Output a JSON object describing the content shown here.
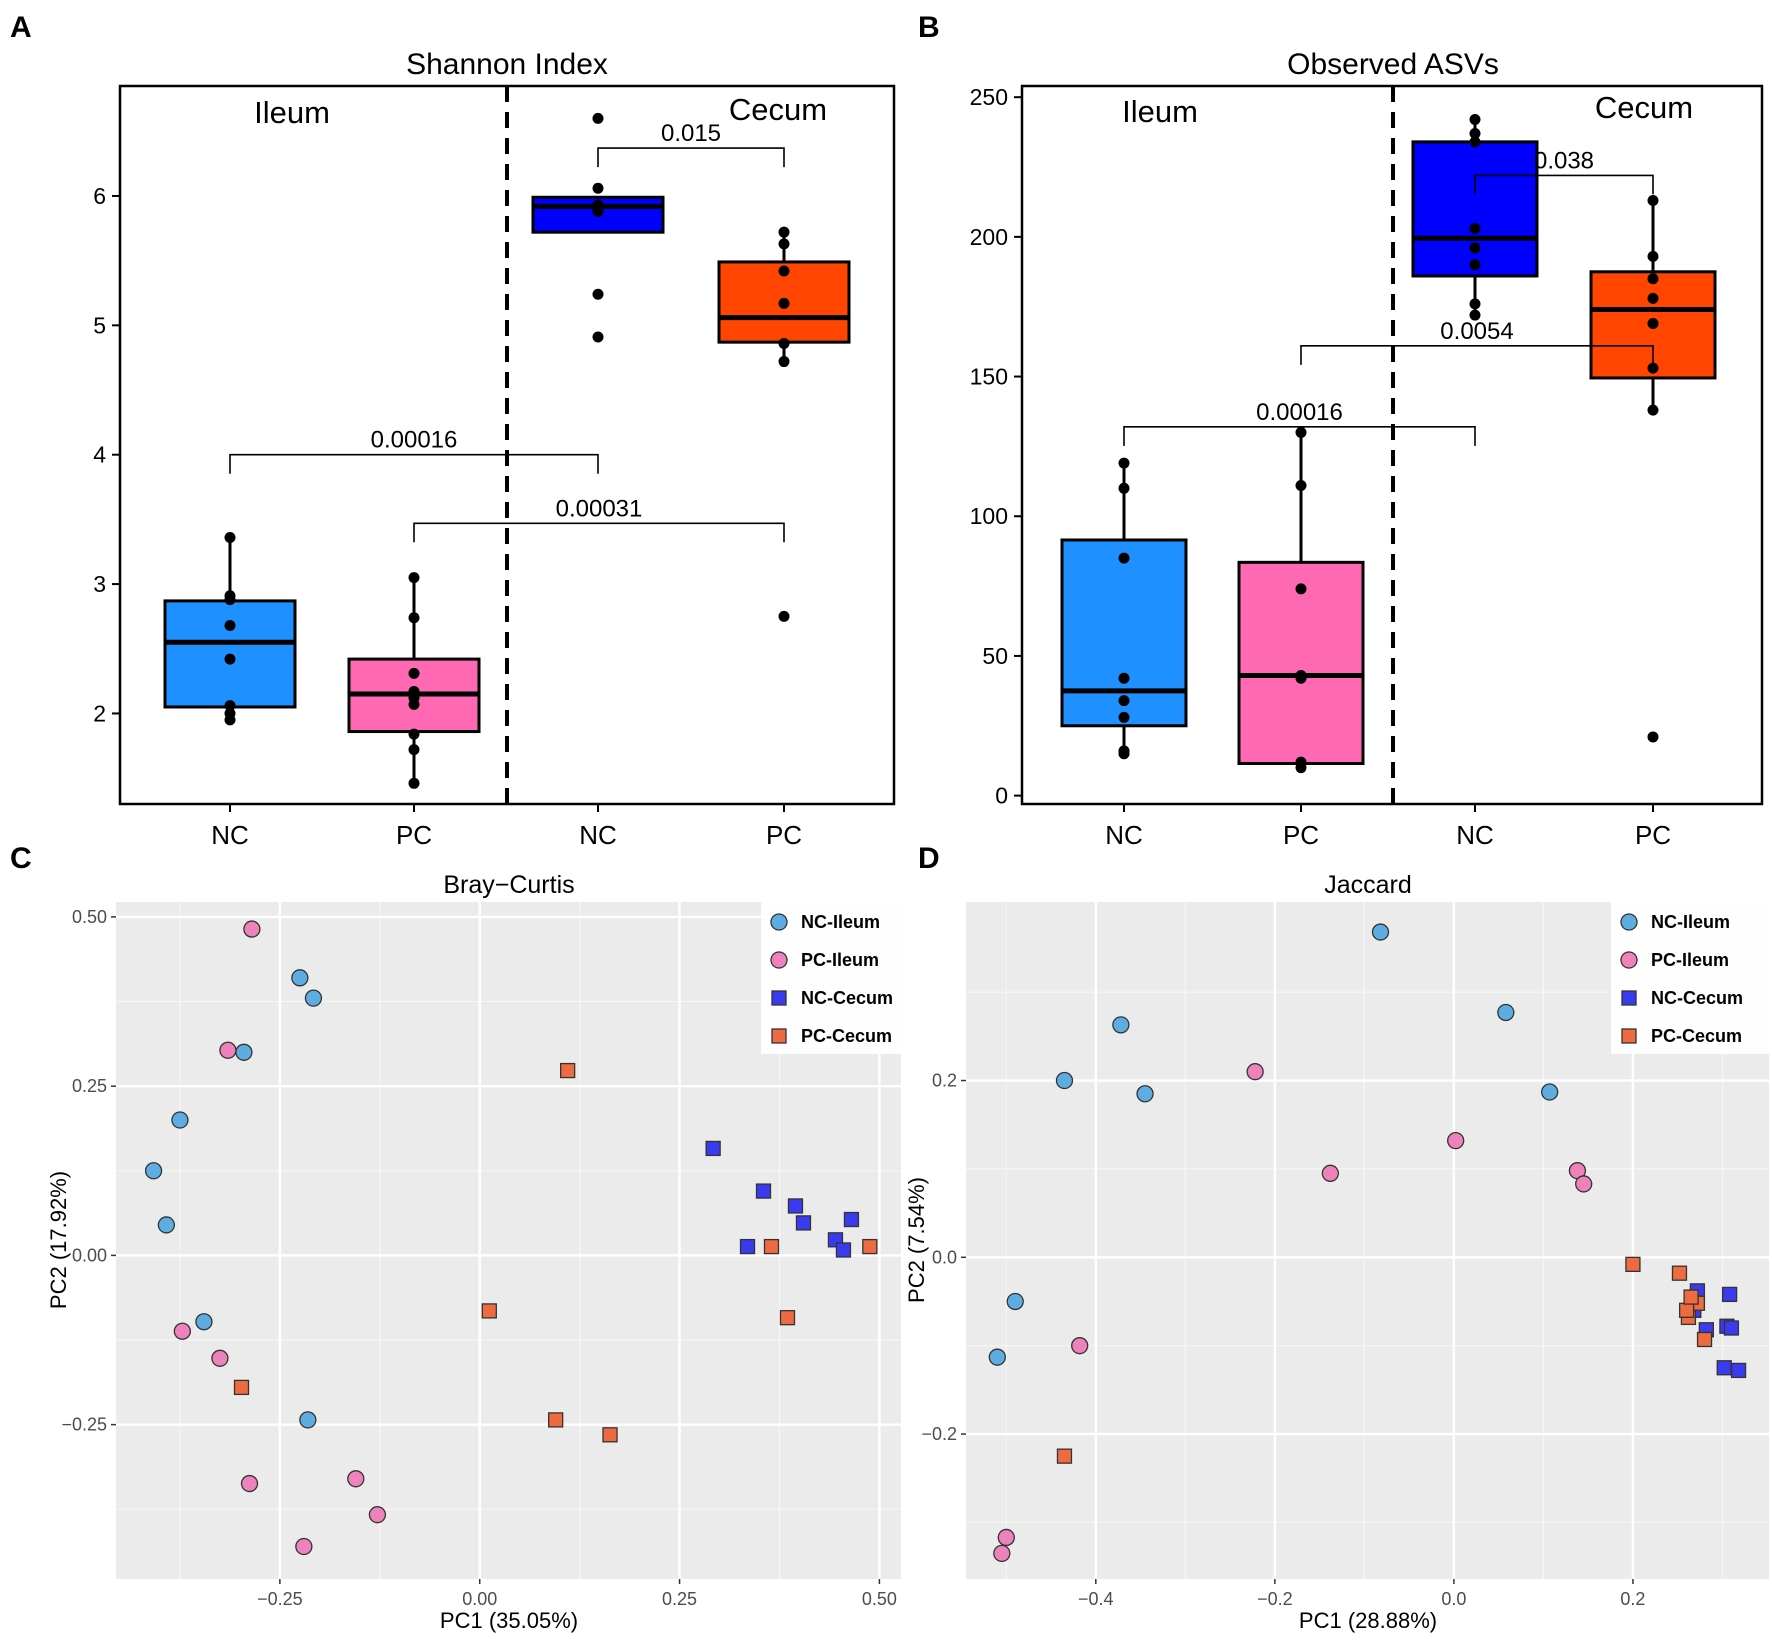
{
  "colors": {
    "nc_ileum": "#1e90ff",
    "pc_ileum": "#ff69b4",
    "nc_cecum": "#0000ff",
    "pc_cecum": "#ff4500",
    "pc_light_nc_ileum": "#5dade2",
    "pc_light_pc_ileum": "#ee82ba",
    "pc_light_nc_cecum": "#3a3aef",
    "pc_light_pc_cecum": "#ee6a40",
    "pcoa_panel_bg": "#ebebeb",
    "pcoa_grid": "#ffffff"
  },
  "chart_data": [
    {
      "panel": "A",
      "type": "box",
      "title": "Shannon Index",
      "region_labels": [
        "Ileum",
        "Cecum"
      ],
      "categories": [
        "NC",
        "PC",
        "NC",
        "PC"
      ],
      "groups": [
        "NC-Ileum",
        "PC-Ileum",
        "NC-Cecum",
        "PC-Cecum"
      ],
      "group_colors": [
        "nc_ileum",
        "pc_ileum",
        "nc_cecum",
        "pc_cecum"
      ],
      "ylim": [
        1.3,
        6.85
      ],
      "yticks": [
        2,
        3,
        4,
        5,
        6
      ],
      "boxes": [
        {
          "q1": 2.05,
          "median": 2.55,
          "q3": 2.87,
          "lo": 1.95,
          "hi": 3.36
        },
        {
          "q1": 1.86,
          "median": 2.15,
          "q3": 2.42,
          "lo": 1.46,
          "hi": 3.05
        },
        {
          "q1": 5.72,
          "median": 5.92,
          "q3": 5.99,
          "lo": 5.72,
          "hi": 5.99
        },
        {
          "q1": 4.87,
          "median": 5.06,
          "q3": 5.49,
          "lo": 4.72,
          "hi": 5.72
        }
      ],
      "points": [
        [
          1.95,
          2.0,
          2.06,
          2.42,
          2.68,
          2.88,
          2.91,
          3.36
        ],
        [
          1.46,
          1.72,
          1.84,
          2.07,
          2.12,
          2.17,
          2.31,
          2.74,
          3.05
        ],
        [
          4.91,
          5.24,
          5.88,
          5.9,
          5.93,
          6.06,
          6.6
        ],
        [
          2.75,
          4.72,
          4.86,
          5.17,
          5.42,
          5.63,
          5.72
        ]
      ],
      "comparisons": [
        {
          "from": 3,
          "to": 4,
          "y": 6.37,
          "label": "0.015"
        },
        {
          "from": 1,
          "to": 3,
          "y": 4.0,
          "label": "0.00016"
        },
        {
          "from": 2,
          "to": 4,
          "y": 3.47,
          "label": "0.00031"
        }
      ]
    },
    {
      "panel": "B",
      "type": "box",
      "title": "Observed ASVs",
      "region_labels": [
        "Ileum",
        "Cecum"
      ],
      "categories": [
        "NC",
        "PC",
        "NC",
        "PC"
      ],
      "groups": [
        "NC-Ileum",
        "PC-Ileum",
        "NC-Cecum",
        "PC-Cecum"
      ],
      "group_colors": [
        "nc_ileum",
        "pc_ileum",
        "nc_cecum",
        "pc_cecum"
      ],
      "ylim": [
        -3,
        254
      ],
      "yticks": [
        0,
        50,
        100,
        150,
        200,
        250
      ],
      "boxes": [
        {
          "q1": 25,
          "median": 37.5,
          "q3": 91.5,
          "lo": 15,
          "hi": 119
        },
        {
          "q1": 11.5,
          "median": 43,
          "q3": 83.5,
          "lo": 10,
          "hi": 130
        },
        {
          "q1": 186,
          "median": 199.5,
          "q3": 234,
          "lo": 172,
          "hi": 242
        },
        {
          "q1": 149.5,
          "median": 174,
          "q3": 187.5,
          "lo": 138,
          "hi": 213
        }
      ],
      "points": [
        [
          15,
          16,
          28,
          34,
          42,
          85,
          110,
          119
        ],
        [
          10,
          12,
          42,
          43,
          74,
          111,
          130
        ],
        [
          172,
          176,
          190,
          196,
          203,
          234,
          237,
          242
        ],
        [
          21,
          138,
          153,
          169,
          178,
          185,
          193,
          213
        ]
      ],
      "comparisons": [
        {
          "from": 3,
          "to": 4,
          "y": 222,
          "label": "0.038"
        },
        {
          "from": 2,
          "to": 4,
          "y": 161,
          "label": "0.0054"
        },
        {
          "from": 1,
          "to": 3,
          "y": 132,
          "label": "0.00016"
        }
      ]
    },
    {
      "panel": "C",
      "type": "scatter",
      "title": "Bray−Curtis",
      "xlabel": "PC1 (35.05%)",
      "ylabel": "PC2 (17.92%)",
      "xlim": [
        -0.455,
        0.527
      ],
      "ylim": [
        -0.478,
        0.522
      ],
      "xticks": [
        -0.25,
        0.0,
        0.25,
        0.5
      ],
      "xtick_labels": [
        "−0.25",
        "0.00",
        "0.25",
        "0.50"
      ],
      "yticks": [
        -0.25,
        0.0,
        0.25,
        0.5
      ],
      "ytick_labels": [
        "−0.25",
        "0.00",
        "0.25",
        "0.50"
      ],
      "legend": [
        "NC-Ileum",
        "PC-Ileum",
        "NC-Cecum",
        "PC-Cecum"
      ],
      "series": [
        {
          "name": "NC-Ileum",
          "shape": "circle",
          "color": "pc_light_nc_ileum",
          "points": [
            [
              -0.225,
              0.41
            ],
            [
              -0.208,
              0.38
            ],
            [
              -0.295,
              0.3
            ],
            [
              -0.375,
              0.2
            ],
            [
              -0.408,
              0.125
            ],
            [
              -0.392,
              0.045
            ],
            [
              -0.345,
              -0.098
            ],
            [
              -0.215,
              -0.243
            ]
          ]
        },
        {
          "name": "PC-Ileum",
          "shape": "circle",
          "color": "pc_light_pc_ileum",
          "points": [
            [
              -0.285,
              0.482
            ],
            [
              -0.315,
              0.303
            ],
            [
              -0.372,
              -0.112
            ],
            [
              -0.325,
              -0.152
            ],
            [
              -0.288,
              -0.337
            ],
            [
              -0.22,
              -0.43
            ],
            [
              -0.155,
              -0.33
            ],
            [
              -0.128,
              -0.383
            ]
          ]
        },
        {
          "name": "NC-Cecum",
          "shape": "square",
          "color": "pc_light_nc_cecum",
          "points": [
            [
              0.292,
              0.158
            ],
            [
              0.355,
              0.095
            ],
            [
              0.395,
              0.073
            ],
            [
              0.405,
              0.048
            ],
            [
              0.465,
              0.053
            ],
            [
              0.445,
              0.023
            ],
            [
              0.455,
              0.008
            ],
            [
              0.335,
              0.013
            ]
          ]
        },
        {
          "name": "PC-Cecum",
          "shape": "square",
          "color": "pc_light_pc_cecum",
          "points": [
            [
              0.11,
              0.273
            ],
            [
              0.365,
              0.013
            ],
            [
              0.385,
              -0.092
            ],
            [
              0.488,
              0.013
            ],
            [
              0.012,
              -0.082
            ],
            [
              0.095,
              -0.243
            ],
            [
              0.163,
              -0.265
            ],
            [
              -0.298,
              -0.195
            ]
          ]
        }
      ]
    },
    {
      "panel": "D",
      "type": "scatter",
      "title": "Jaccard",
      "xlabel": "PC1 (28.88%)",
      "ylabel": "PC2 (7.54%)",
      "xlim": [
        -0.545,
        0.352
      ],
      "ylim": [
        -0.364,
        0.402
      ],
      "xticks": [
        -0.4,
        -0.2,
        0.0,
        0.2
      ],
      "xtick_labels": [
        "−0.4",
        "−0.2",
        "0.0",
        "0.2"
      ],
      "yticks": [
        -0.2,
        0.0,
        0.2
      ],
      "ytick_labels": [
        "−0.2",
        "0.0",
        "0.2"
      ],
      "legend": [
        "NC-Ileum",
        "PC-Ileum",
        "NC-Cecum",
        "PC-Cecum"
      ],
      "series": [
        {
          "name": "NC-Ileum",
          "shape": "circle",
          "color": "pc_light_nc_ileum",
          "points": [
            [
              -0.082,
              0.368
            ],
            [
              0.058,
              0.277
            ],
            [
              0.107,
              0.187
            ],
            [
              -0.372,
              0.263
            ],
            [
              -0.435,
              0.2
            ],
            [
              -0.345,
              0.185
            ],
            [
              -0.49,
              -0.05
            ],
            [
              -0.51,
              -0.113
            ]
          ]
        },
        {
          "name": "PC-Ileum",
          "shape": "circle",
          "color": "pc_light_pc_ileum",
          "points": [
            [
              -0.222,
              0.21
            ],
            [
              0.002,
              0.132
            ],
            [
              -0.138,
              0.095
            ],
            [
              0.138,
              0.098
            ],
            [
              0.145,
              0.083
            ],
            [
              -0.418,
              -0.1
            ],
            [
              -0.5,
              -0.317
            ],
            [
              -0.505,
              -0.335
            ]
          ]
        },
        {
          "name": "NC-Cecum",
          "shape": "square",
          "color": "pc_light_nc_cecum",
          "points": [
            [
              0.272,
              -0.038
            ],
            [
              0.308,
              -0.042
            ],
            [
              0.268,
              -0.06
            ],
            [
              0.282,
              -0.082
            ],
            [
              0.305,
              -0.078
            ],
            [
              0.31,
              -0.08
            ],
            [
              0.302,
              -0.125
            ],
            [
              0.318,
              -0.128
            ]
          ]
        },
        {
          "name": "PC-Cecum",
          "shape": "square",
          "color": "pc_light_pc_cecum",
          "points": [
            [
              0.2,
              -0.008
            ],
            [
              0.252,
              -0.018
            ],
            [
              0.272,
              -0.052
            ],
            [
              0.262,
              -0.068
            ],
            [
              0.26,
              -0.06
            ],
            [
              0.28,
              -0.093
            ],
            [
              -0.435,
              -0.225
            ],
            [
              0.265,
              -0.045
            ]
          ]
        }
      ]
    }
  ]
}
